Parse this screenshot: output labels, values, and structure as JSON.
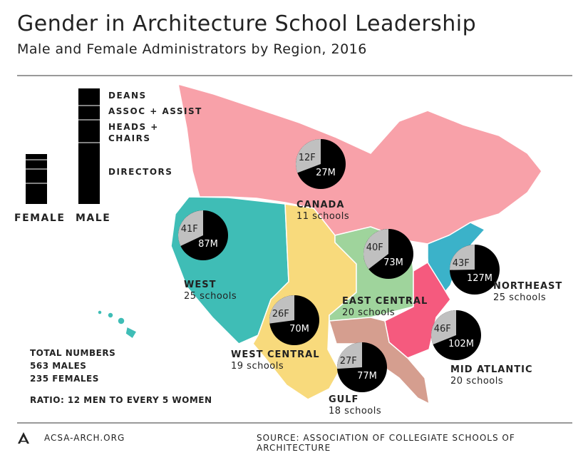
{
  "title": "Gender in Architecture School Leadership",
  "subtitle": "Male and Female Administrators by Region, 2016",
  "legend": {
    "categories": [
      "DEANS",
      "ASSOC + ASSIST",
      "HEADS +",
      "CHAIRS",
      "DIRECTORS"
    ],
    "female_label": "FEMALE",
    "male_label": "MALE"
  },
  "colors": {
    "female": "#c0c0c0",
    "male": "#000000",
    "canada": "#f8a1a9",
    "west": "#3fbdb6",
    "west_central": "#f8da7c",
    "east_central": "#9fd49c",
    "northeast": "#3bb2c9",
    "mid_atlantic": "#f55a7e",
    "gulf": "#d59e8f"
  },
  "regions": [
    {
      "key": "canada",
      "name": "CANADA",
      "schools": "11 schools",
      "female": 12,
      "male": 27,
      "female_label": "12F",
      "male_label": "27M"
    },
    {
      "key": "west",
      "name": "WEST",
      "schools": "25 schools",
      "female": 41,
      "male": 87,
      "female_label": "41F",
      "male_label": "87M"
    },
    {
      "key": "east_central",
      "name": "EAST CENTRAL",
      "schools": "20 schools",
      "female": 40,
      "male": 73,
      "female_label": "40F",
      "male_label": "73M"
    },
    {
      "key": "northeast",
      "name": "NORTHEAST",
      "schools": "25 schools",
      "female": 43,
      "male": 127,
      "female_label": "43F",
      "male_label": "127M"
    },
    {
      "key": "west_central",
      "name": "WEST CENTRAL",
      "schools": "19 schools",
      "female": 26,
      "male": 70,
      "female_label": "26F",
      "male_label": "70M"
    },
    {
      "key": "mid_atlantic",
      "name": "MID ATLANTIC",
      "schools": "20 schools",
      "female": 46,
      "male": 102,
      "female_label": "46F",
      "male_label": "102M"
    },
    {
      "key": "gulf",
      "name": "GULF",
      "schools": "18 schools",
      "female": 27,
      "male": 77,
      "female_label": "27F",
      "male_label": "77M"
    }
  ],
  "totals": {
    "heading": "TOTAL NUMBERS",
    "males": "563 MALES",
    "females": "235 FEMALES",
    "ratio": "RATIO: 12 MEN TO EVERY 5 WOMEN"
  },
  "footer": {
    "site": "ACSA-ARCH.ORG",
    "source": "SOURCE: ASSOCIATION OF COLLEGIATE SCHOOLS OF ARCHITECTURE"
  }
}
